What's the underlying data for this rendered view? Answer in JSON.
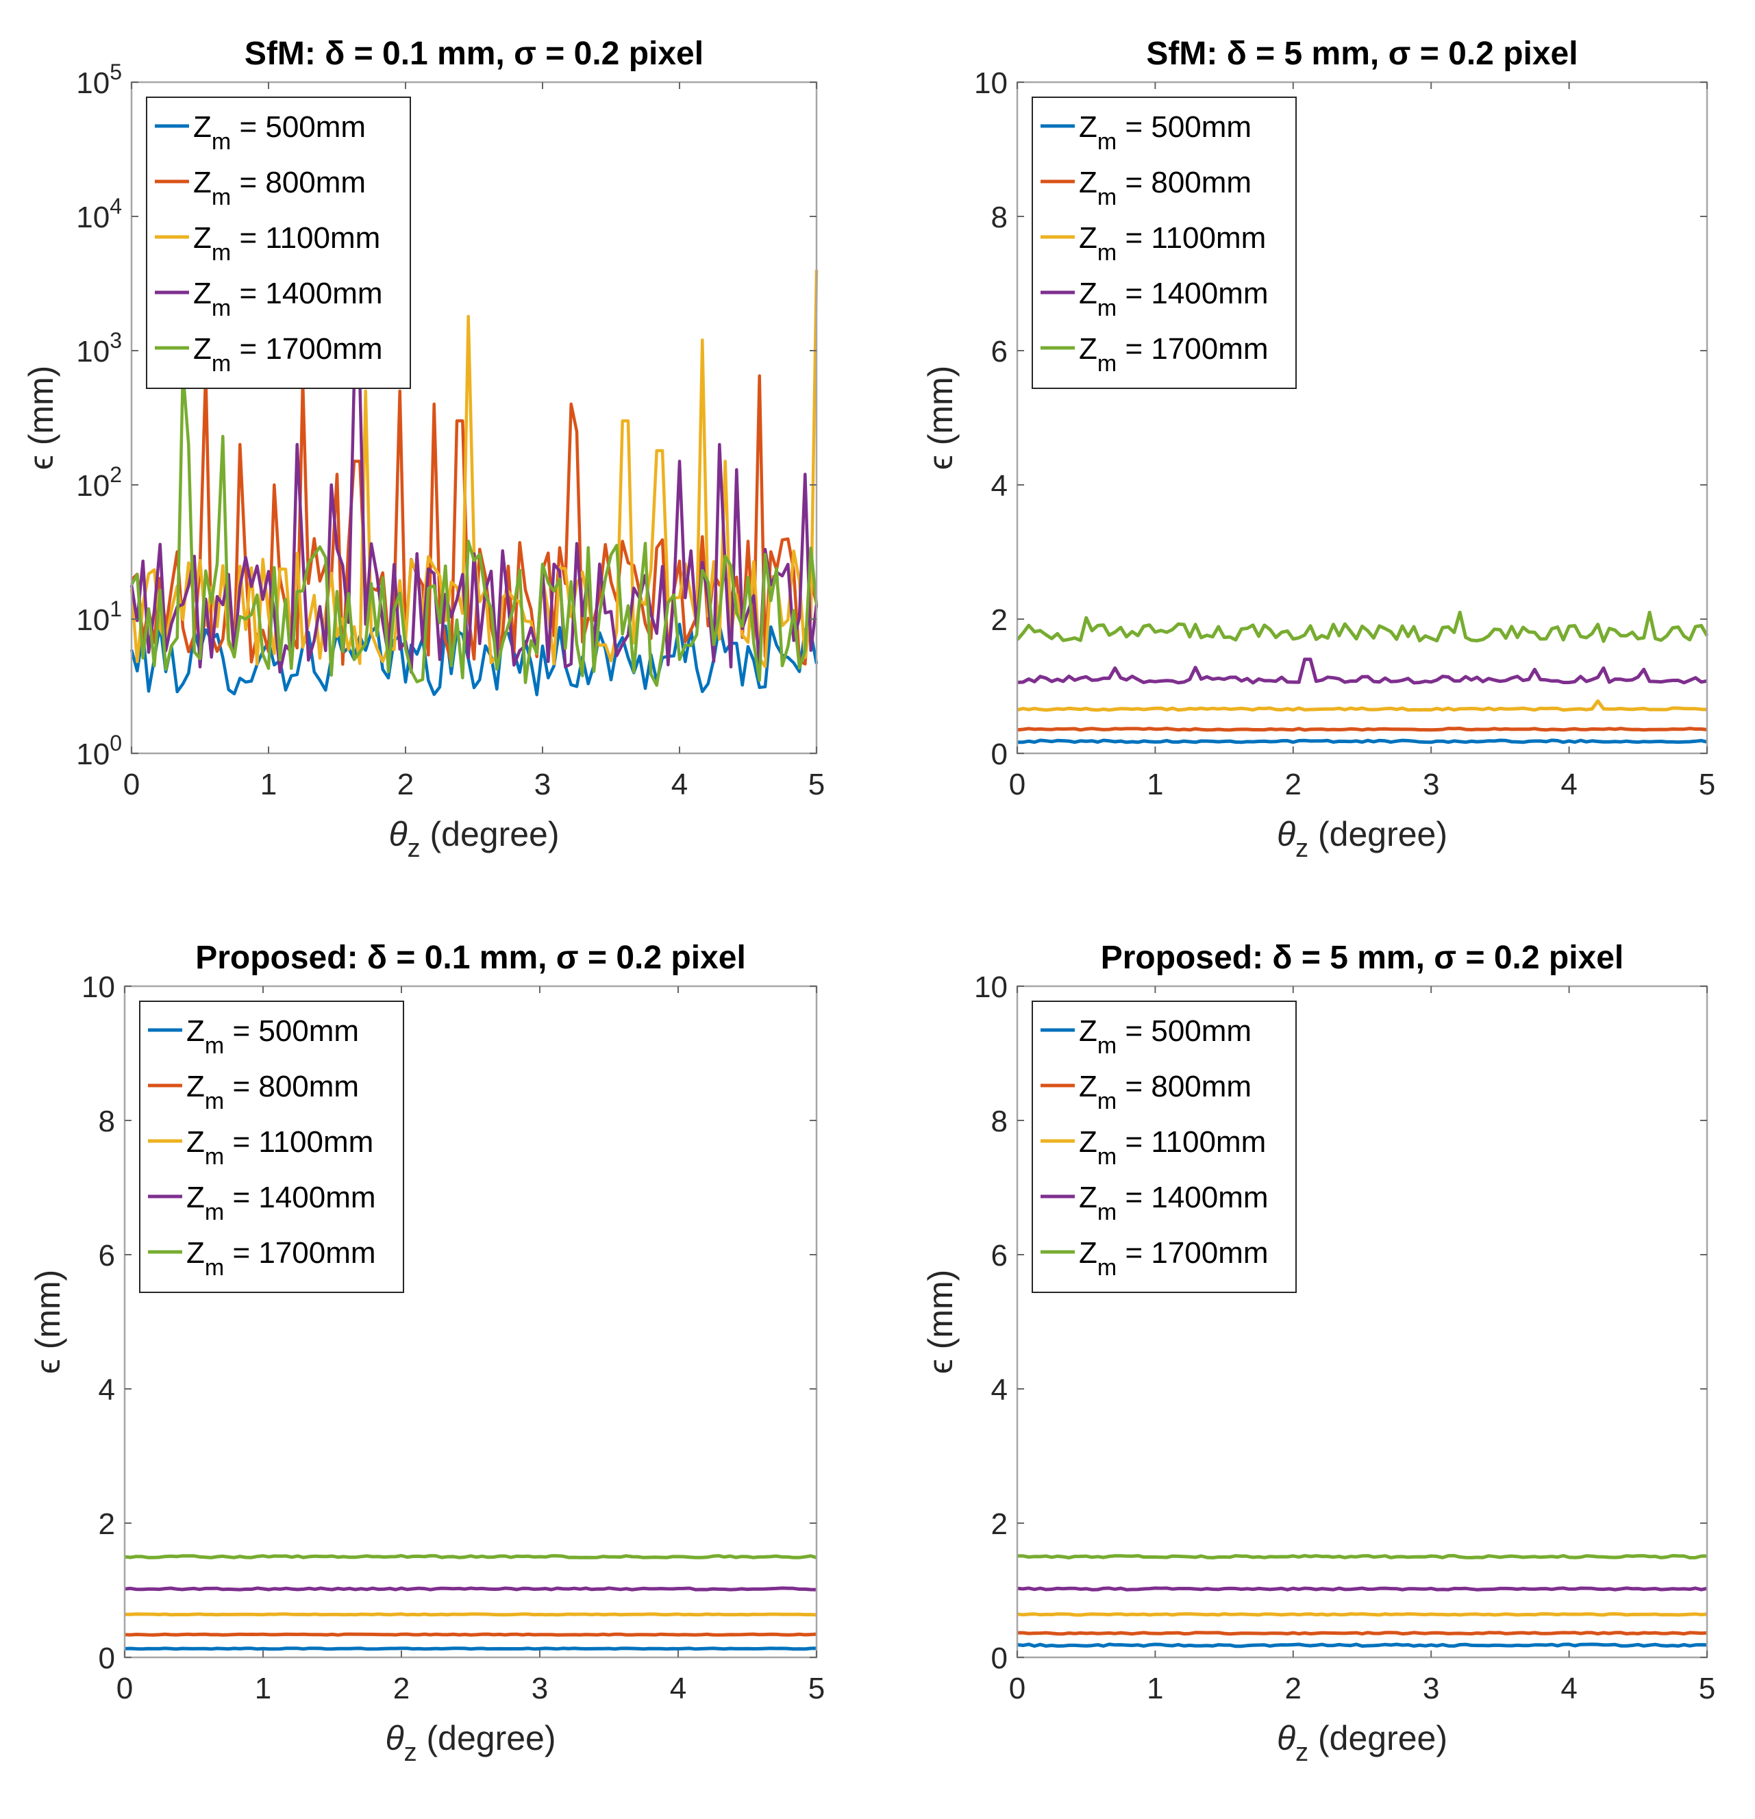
{
  "colors": {
    "blue": "#0072BD",
    "orange": "#D95319",
    "yellow": "#EDB120",
    "purple": "#7E2F8E",
    "green": "#77AC30"
  },
  "chart_data": [
    {
      "type": "line",
      "title": "SfM: δ = 0.1 mm, σ = 0.2 pixel",
      "xlabel": "θz (degree)",
      "ylabel": "ϵ (mm)",
      "xlim": [
        0,
        5
      ],
      "ylim": [
        1,
        100000
      ],
      "yscale": "log",
      "xticks": [
        0,
        1,
        2,
        3,
        4,
        5
      ],
      "yticks": [
        1,
        10,
        100,
        1000,
        10000,
        100000
      ],
      "ytick_labels": [
        "10^0",
        "10^1",
        "10^2",
        "10^3",
        "10^4",
        "10^5"
      ],
      "legend_location": "top-left",
      "series": [
        {
          "name": "Zm = 500mm",
          "legend_prefix": "Z",
          "legend_sub": "m",
          "legend_rest": " = 500mm",
          "color": "#0072BD",
          "base": 5,
          "noise": 0.12,
          "spikes": []
        },
        {
          "name": "Zm = 800mm",
          "legend_prefix": "Z",
          "legend_sub": "m",
          "legend_rest": " = 800mm",
          "color": "#D95319",
          "base": 14,
          "noise": 0.22,
          "spikes": [
            [
              0.55,
              700
            ],
            [
              0.8,
              200
            ],
            [
              1.05,
              100
            ],
            [
              1.25,
              600
            ],
            [
              1.5,
              120
            ],
            [
              1.65,
              150
            ],
            [
              1.95,
              500
            ],
            [
              2.2,
              400
            ],
            [
              2.4,
              300
            ],
            [
              3.2,
              400
            ],
            [
              3.25,
              250
            ],
            [
              4.6,
              650
            ]
          ]
        },
        {
          "name": "Zm = 1100mm",
          "legend_prefix": "Z",
          "legend_sub": "m",
          "legend_rest": " = 1100mm",
          "color": "#EDB120",
          "base": 12,
          "noise": 0.2,
          "spikes": [
            [
              1.7,
              500
            ],
            [
              2.45,
              1800
            ],
            [
              3.6,
              300
            ],
            [
              3.85,
              180
            ],
            [
              4.15,
              1200
            ],
            [
              4.35,
              150
            ],
            [
              5.0,
              4000
            ]
          ]
        },
        {
          "name": "Zm = 1400mm",
          "legend_prefix": "Z",
          "legend_sub": "m",
          "legend_rest": " = 1400mm",
          "color": "#7E2F8E",
          "base": 12,
          "noise": 0.22,
          "spikes": [
            [
              1.2,
              200
            ],
            [
              1.45,
              100
            ],
            [
              1.65,
              600
            ],
            [
              4.0,
              150
            ],
            [
              4.3,
              200
            ],
            [
              4.4,
              130
            ],
            [
              4.9,
              120
            ]
          ]
        },
        {
          "name": "Zm = 1700mm",
          "legend_prefix": "Z",
          "legend_sub": "m",
          "legend_rest": " = 1700mm",
          "color": "#77AC30",
          "base": 11,
          "noise": 0.25,
          "spikes": [
            [
              0.38,
              700
            ],
            [
              0.42,
              200
            ],
            [
              0.65,
              230
            ]
          ]
        }
      ]
    },
    {
      "type": "line",
      "title": "SfM: δ = 5 mm, σ = 0.2 pixel",
      "xlabel": "θz (degree)",
      "ylabel": "ϵ (mm)",
      "xlim": [
        0,
        5
      ],
      "ylim": [
        0,
        10
      ],
      "yscale": "linear",
      "xticks": [
        0,
        1,
        2,
        3,
        4,
        5
      ],
      "yticks": [
        0,
        2,
        4,
        6,
        8,
        10
      ],
      "legend_location": "top-left",
      "series": [
        {
          "name": "Zm = 500mm",
          "legend_prefix": "Z",
          "legend_sub": "m",
          "legend_rest": " = 500mm",
          "color": "#0072BD",
          "base": 0.18,
          "noise": 0.015,
          "spikes": []
        },
        {
          "name": "Zm = 800mm",
          "legend_prefix": "Z",
          "legend_sub": "m",
          "legend_rest": " = 800mm",
          "color": "#D95319",
          "base": 0.36,
          "noise": 0.012,
          "spikes": []
        },
        {
          "name": "Zm = 1100mm",
          "legend_prefix": "Z",
          "legend_sub": "m",
          "legend_rest": " = 1100mm",
          "color": "#EDB120",
          "base": 0.66,
          "noise": 0.015,
          "spikes": [
            [
              4.2,
              0.78
            ]
          ]
        },
        {
          "name": "Zm = 1400mm",
          "legend_prefix": "Z",
          "legend_sub": "m",
          "legend_rest": " = 1400mm",
          "color": "#7E2F8E",
          "base": 1.1,
          "noise": 0.05,
          "spikes": [
            [
              2.1,
              1.4
            ],
            [
              0.7,
              1.27
            ],
            [
              1.3,
              1.28
            ],
            [
              3.75,
              1.25
            ],
            [
              4.25,
              1.27
            ],
            [
              4.55,
              1.25
            ]
          ]
        },
        {
          "name": "Zm = 1700mm",
          "legend_prefix": "Z",
          "legend_sub": "m",
          "legend_rest": " = 1700mm",
          "color": "#77AC30",
          "base": 1.8,
          "noise": 0.13,
          "spikes": [
            [
              0.5,
              2.02
            ],
            [
              3.2,
              2.1
            ],
            [
              4.6,
              2.1
            ]
          ]
        }
      ]
    },
    {
      "type": "line",
      "title": "Proposed: δ = 0.1 mm, σ = 0.2 pixel",
      "xlabel": "θz (degree)",
      "ylabel": "ϵ (mm)",
      "xlim": [
        0,
        5
      ],
      "ylim": [
        0,
        10
      ],
      "yscale": "linear",
      "xticks": [
        0,
        1,
        2,
        3,
        4,
        5
      ],
      "yticks": [
        0,
        2,
        4,
        6,
        8,
        10
      ],
      "legend_location": "top-left",
      "series": [
        {
          "name": "Zm = 500mm",
          "legend_prefix": "Z",
          "legend_sub": "m",
          "legend_rest": " = 500mm",
          "color": "#0072BD",
          "base": 0.13,
          "noise": 0.006,
          "spikes": []
        },
        {
          "name": "Zm = 800mm",
          "legend_prefix": "Z",
          "legend_sub": "m",
          "legend_rest": " = 800mm",
          "color": "#D95319",
          "base": 0.34,
          "noise": 0.006,
          "spikes": []
        },
        {
          "name": "Zm = 1100mm",
          "legend_prefix": "Z",
          "legend_sub": "m",
          "legend_rest": " = 1100mm",
          "color": "#EDB120",
          "base": 0.64,
          "noise": 0.006,
          "spikes": []
        },
        {
          "name": "Zm = 1400mm",
          "legend_prefix": "Z",
          "legend_sub": "m",
          "legend_rest": " = 1400mm",
          "color": "#7E2F8E",
          "base": 1.02,
          "noise": 0.012,
          "spikes": []
        },
        {
          "name": "Zm = 1700mm",
          "legend_prefix": "Z",
          "legend_sub": "m",
          "legend_rest": " = 1700mm",
          "color": "#77AC30",
          "base": 1.5,
          "noise": 0.015,
          "spikes": []
        }
      ]
    },
    {
      "type": "line",
      "title": "Proposed: δ = 5 mm, σ = 0.2 pixel",
      "xlabel": "θz (degree)",
      "ylabel": "ϵ (mm)",
      "xlim": [
        0,
        5
      ],
      "ylim": [
        0,
        10
      ],
      "yscale": "linear",
      "xticks": [
        0,
        1,
        2,
        3,
        4,
        5
      ],
      "yticks": [
        0,
        2,
        4,
        6,
        8,
        10
      ],
      "legend_location": "top-left",
      "series": [
        {
          "name": "Zm = 500mm",
          "legend_prefix": "Z",
          "legend_sub": "m",
          "legend_rest": " = 500mm",
          "color": "#0072BD",
          "base": 0.18,
          "noise": 0.015,
          "spikes": []
        },
        {
          "name": "Zm = 800mm",
          "legend_prefix": "Z",
          "legend_sub": "m",
          "legend_rest": " = 800mm",
          "color": "#D95319",
          "base": 0.36,
          "noise": 0.01,
          "spikes": []
        },
        {
          "name": "Zm = 1100mm",
          "legend_prefix": "Z",
          "legend_sub": "m",
          "legend_rest": " = 1100mm",
          "color": "#EDB120",
          "base": 0.64,
          "noise": 0.008,
          "spikes": []
        },
        {
          "name": "Zm = 1400mm",
          "legend_prefix": "Z",
          "legend_sub": "m",
          "legend_rest": " = 1400mm",
          "color": "#7E2F8E",
          "base": 1.02,
          "noise": 0.012,
          "spikes": []
        },
        {
          "name": "Zm = 1700mm",
          "legend_prefix": "Z",
          "legend_sub": "m",
          "legend_rest": " = 1700mm",
          "color": "#77AC30",
          "base": 1.5,
          "noise": 0.015,
          "spikes": []
        }
      ]
    }
  ]
}
